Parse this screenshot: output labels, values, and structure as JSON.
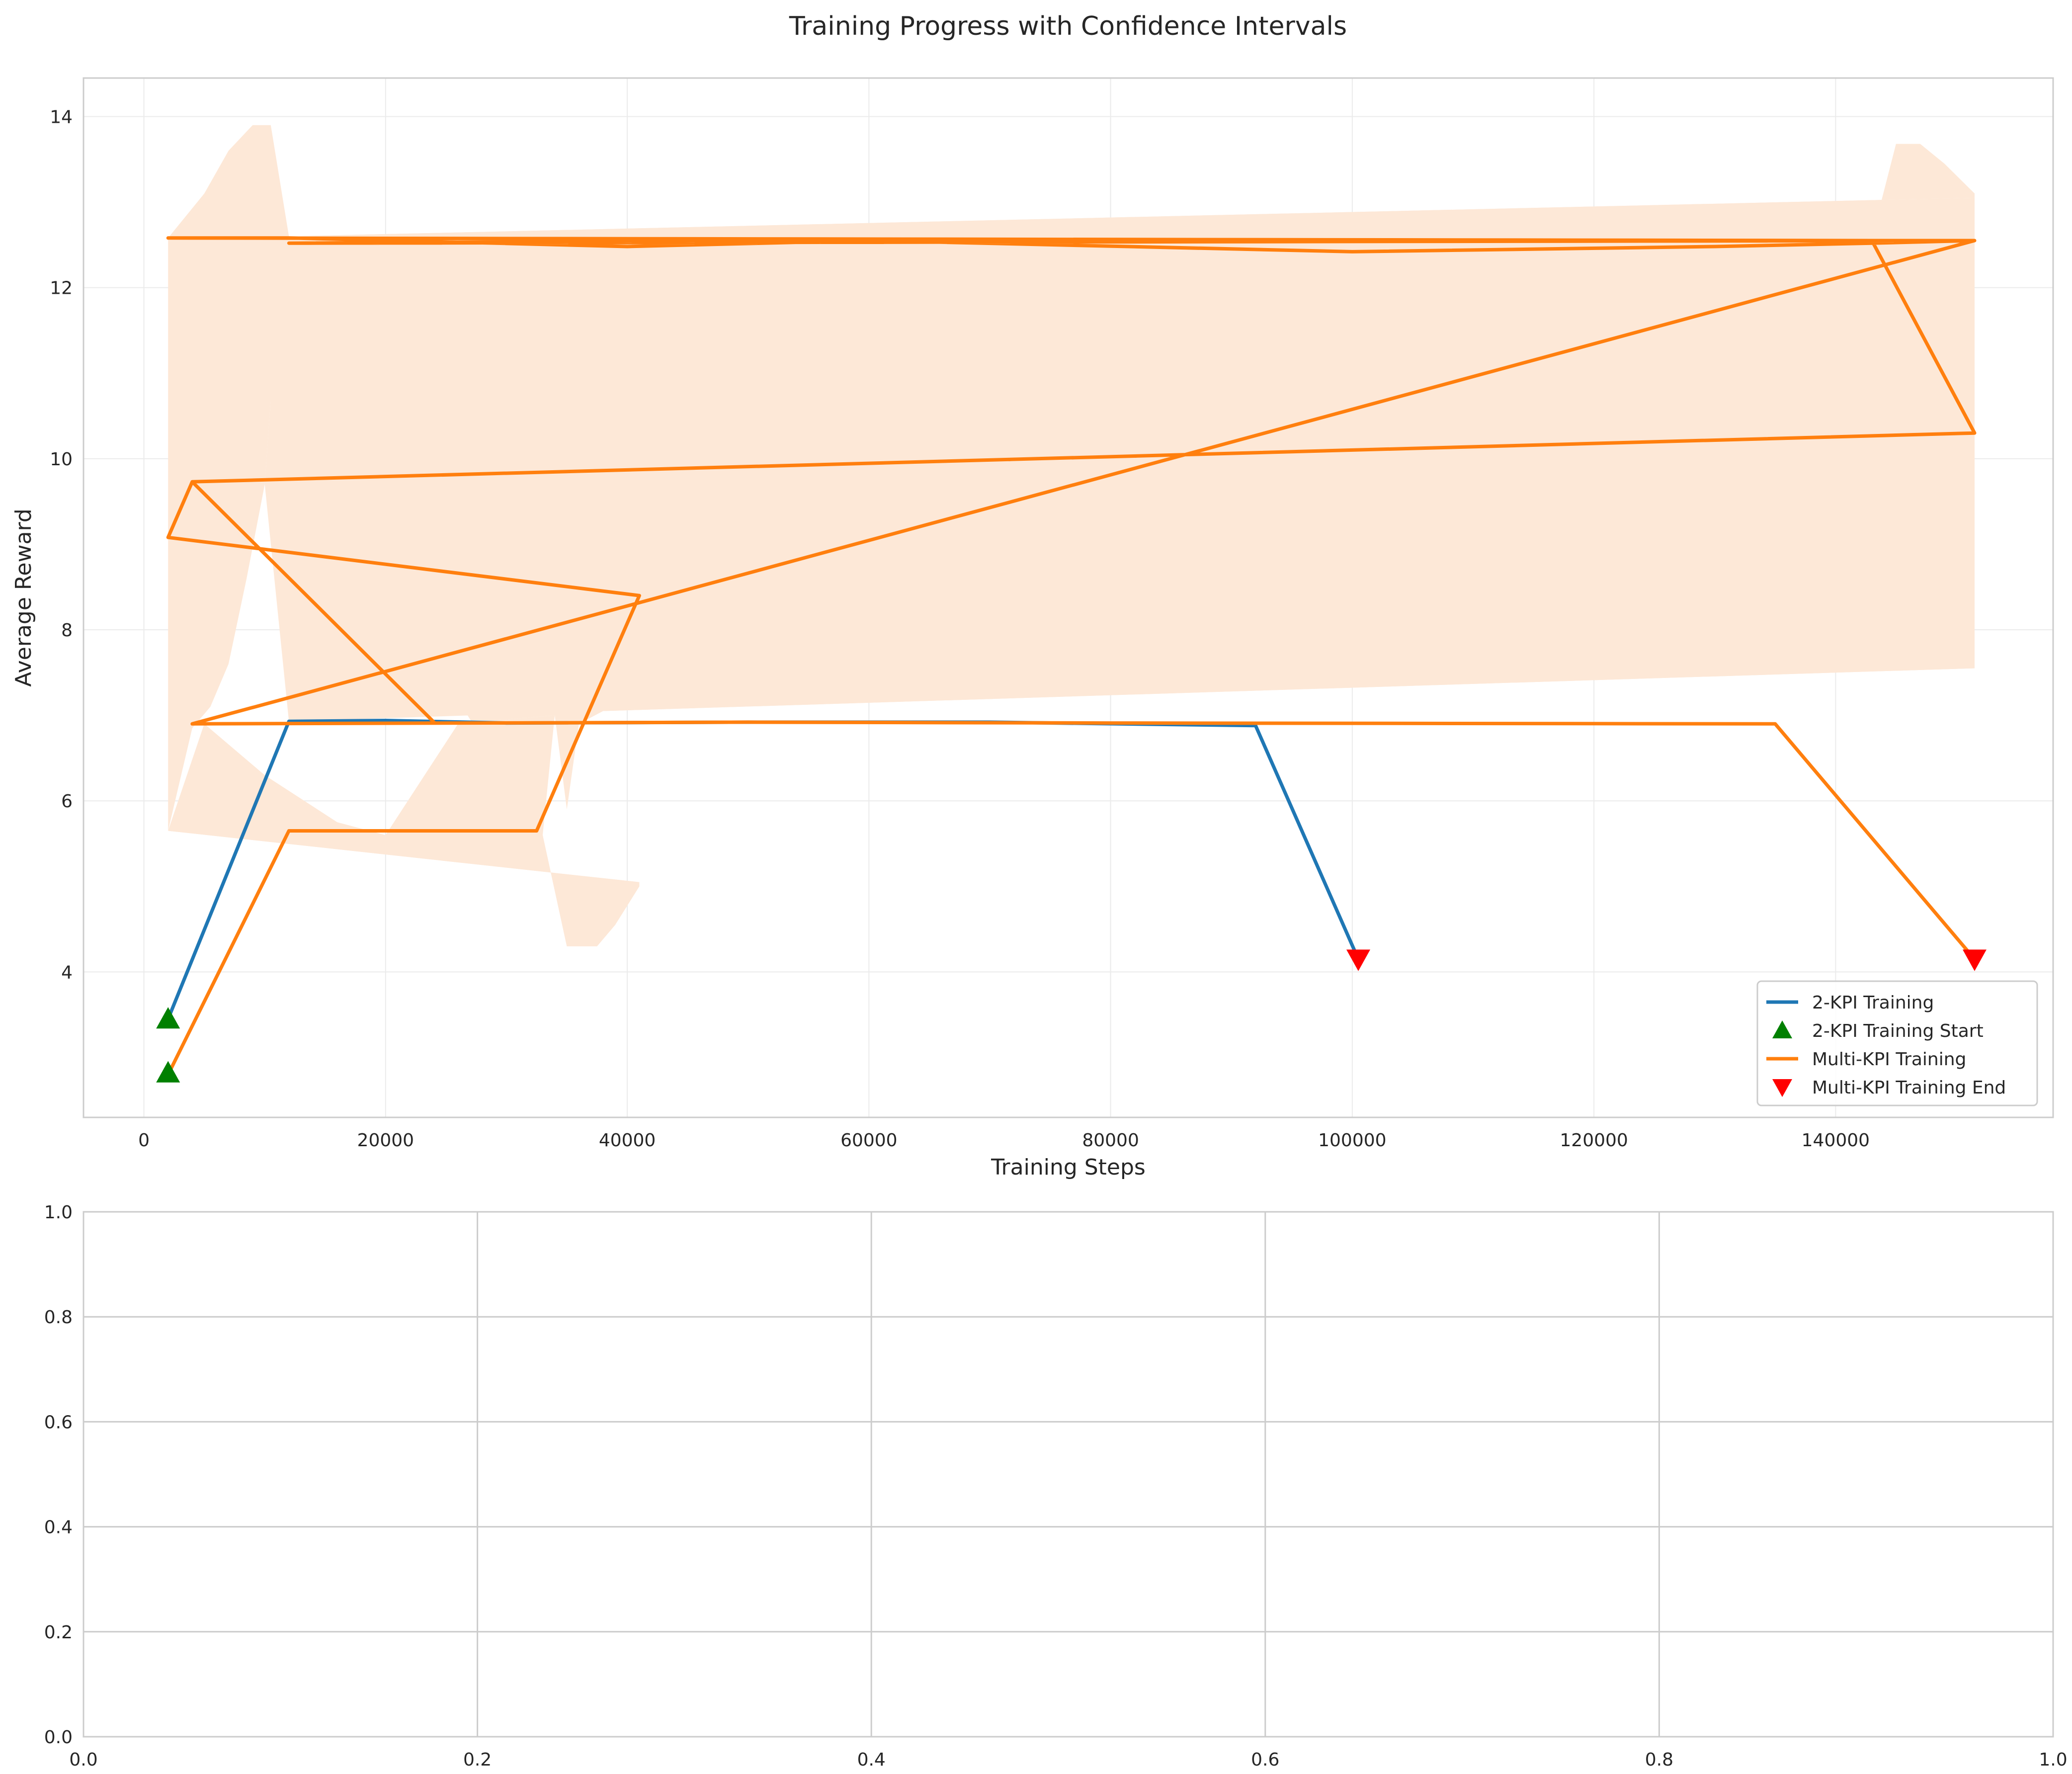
{
  "chart_data": [
    {
      "type": "line",
      "title": "Training Progress with Confidence Intervals",
      "xlabel": "Training Steps",
      "ylabel": "Average Reward",
      "xlim": [
        -5000,
        158000
      ],
      "ylim": [
        2.3,
        14.45
      ],
      "xticks": [
        0,
        20000,
        40000,
        60000,
        80000,
        100000,
        120000,
        140000
      ],
      "xtick_labels": [
        "0",
        "20000",
        "40000",
        "60000",
        "80000",
        "100000",
        "120000",
        "140000"
      ],
      "yticks": [
        4,
        6,
        8,
        10,
        12,
        14
      ],
      "ytick_labels": [
        "4",
        "6",
        "8",
        "10",
        "12",
        "14"
      ],
      "grid": true,
      "legend_position": "lower-right",
      "legend": [
        {
          "label": "2-KPI Training",
          "kind": "line",
          "color": "#1f77b4"
        },
        {
          "label": "2-KPI Training Start",
          "kind": "marker-up",
          "color": "#008000"
        },
        {
          "label": "Multi-KPI Training",
          "kind": "line",
          "color": "#ff7f0e"
        },
        {
          "label": "Multi-KPI Training End",
          "kind": "marker-down",
          "color": "#ff0000"
        }
      ],
      "confidence_band": {
        "color": "#fde8d7",
        "upper": [
          [
            2000,
            12.58
          ],
          [
            5000,
            13.1
          ],
          [
            7000,
            13.6
          ],
          [
            9000,
            13.9
          ],
          [
            10500,
            13.9
          ],
          [
            12000,
            12.6
          ],
          [
            151500,
            13.05
          ],
          [
            151500,
            13.1
          ],
          [
            149000,
            13.45
          ],
          [
            147000,
            13.68
          ],
          [
            145000,
            13.68
          ],
          [
            143000,
            12.58
          ]
        ],
        "lower": [
          [
            143000,
            12.5
          ],
          [
            145000,
            10.0
          ],
          [
            147000,
            9.2
          ],
          [
            149000,
            8.5
          ],
          [
            151500,
            7.55
          ],
          [
            38000,
            7.05
          ],
          [
            36000,
            6.9
          ],
          [
            35000,
            5.9
          ],
          [
            34000,
            7.0
          ],
          [
            26000,
            6.9
          ],
          [
            20000,
            5.6
          ],
          [
            16000,
            5.75
          ],
          [
            10000,
            6.3
          ],
          [
            5000,
            6.9
          ],
          [
            2000,
            5.65
          ],
          [
            41000,
            5.05
          ],
          [
            41000,
            5.0
          ],
          [
            39000,
            4.55
          ],
          [
            37500,
            4.3
          ],
          [
            35000,
            4.3
          ],
          [
            33000,
            5.6
          ]
        ],
        "left_edge": [
          [
            12000,
            12.6
          ],
          [
            10800,
            11.3
          ],
          [
            10000,
            9.7
          ],
          [
            8500,
            8.6
          ],
          [
            7000,
            7.6
          ],
          [
            5500,
            7.1
          ],
          [
            4000,
            6.85
          ],
          [
            2000,
            5.65
          ]
        ]
      },
      "series": [
        {
          "name": "2-KPI Training",
          "color": "#1f77b4",
          "x": [
            2000,
            12000,
            20000,
            30000,
            50000,
            70000,
            92000,
            100500
          ],
          "y": [
            3.45,
            6.93,
            6.94,
            6.91,
            6.92,
            6.92,
            6.88,
            4.15
          ]
        },
        {
          "name": "Multi-KPI Training",
          "color": "#ff7f0e",
          "x": [
            2000,
            12000,
            32500,
            41000,
            2000,
            4000,
            24000,
            4000,
            151500,
            143000,
            2000,
            12000,
            40000,
            60000,
            100000,
            130000,
            143000,
            151500,
            12000,
            60000,
            100000,
            151500,
            4000,
            50000,
            80000,
            135000,
            151500
          ],
          "y": [
            2.8,
            5.65,
            5.65,
            8.4,
            9.08,
            9.73,
            6.92,
            9.73,
            10.3,
            12.55,
            12.58,
            12.58,
            12.48,
            12.55,
            12.42,
            12.48,
            12.52,
            12.55,
            12.52,
            12.56,
            12.55,
            12.55,
            6.9,
            6.92,
            6.91,
            6.9,
            4.15
          ]
        }
      ],
      "markers": [
        {
          "series": "2-KPI Training Start",
          "shape": "triangle-up",
          "color": "#008000",
          "points": [
            [
              2000,
              3.45
            ],
            [
              2000,
              2.82
            ]
          ]
        },
        {
          "series": "Multi-KPI Training End",
          "shape": "triangle-down",
          "color": "#ff0000",
          "points": [
            [
              100500,
              4.15
            ],
            [
              151500,
              4.15
            ]
          ]
        }
      ]
    },
    {
      "type": "line",
      "title": "",
      "xlabel": "",
      "ylabel": "",
      "xlim": [
        0,
        1
      ],
      "ylim": [
        0,
        1
      ],
      "xticks": [
        0,
        0.2,
        0.4,
        0.6,
        0.8,
        1.0
      ],
      "xtick_labels": [
        "0.0",
        "0.2",
        "0.4",
        "0.6",
        "0.8",
        "1.0"
      ],
      "yticks": [
        0,
        0.2,
        0.4,
        0.6,
        0.8,
        1.0
      ],
      "ytick_labels": [
        "0.0",
        "0.2",
        "0.4",
        "0.6",
        "0.8",
        "1.0"
      ],
      "grid": true,
      "series": []
    }
  ]
}
